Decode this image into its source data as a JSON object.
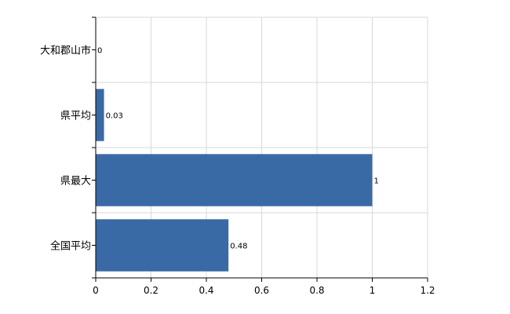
{
  "chart_data": {
    "type": "bar",
    "orientation": "horizontal",
    "categories": [
      "大和郡山市",
      "県平均",
      "県最大",
      "全国平均"
    ],
    "values": [
      0,
      0.03,
      1,
      0.48
    ],
    "data_labels": [
      "0",
      "0.03",
      "1",
      "0.48"
    ],
    "xlim": [
      0,
      1.2
    ],
    "xticks": [
      0,
      0.2,
      0.4,
      0.6,
      0.8,
      1,
      1.2
    ],
    "xtick_labels": [
      "0",
      "0.2",
      "0.4",
      "0.6",
      "0.8",
      "1",
      "1.2"
    ],
    "grid": true,
    "bar_color": "#3a6aa6"
  }
}
